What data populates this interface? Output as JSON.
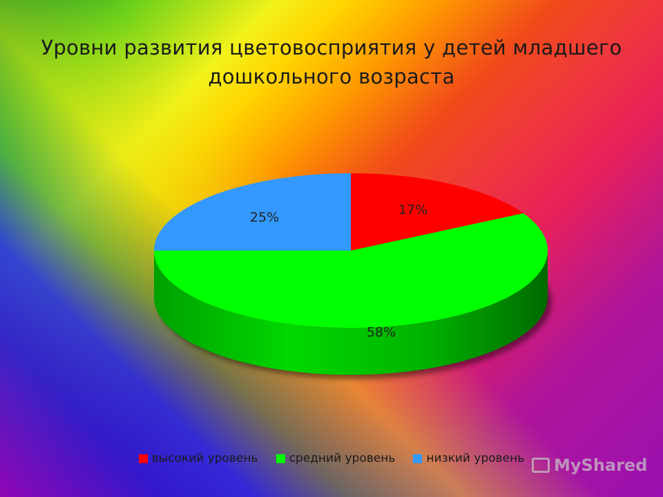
{
  "chart_data": {
    "type": "pie",
    "title": "Уровни развития цветовосприятия у детей младшего дошкольного возраста",
    "slices": [
      {
        "name": "высокий уровень",
        "value": 17,
        "label": "17%",
        "color": "#ff0000"
      },
      {
        "name": "средний уровень",
        "value": 58,
        "label": "58%",
        "color": "#00ff00"
      },
      {
        "name": "низкий уровень",
        "value": 25,
        "label": "25%",
        "color": "#3399ff"
      }
    ],
    "legend_position": "bottom",
    "style": "3d"
  },
  "watermark": {
    "text": "MyShared",
    "icon": "presentation-icon"
  }
}
